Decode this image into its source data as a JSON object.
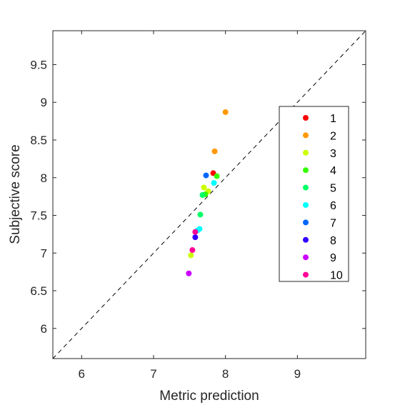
{
  "chart_data": {
    "type": "scatter",
    "xlabel": "Metric prediction",
    "ylabel": "Subjective score",
    "xlim": [
      5.6,
      9.95
    ],
    "ylim": [
      5.6,
      9.95
    ],
    "xticks": [
      6,
      7,
      8,
      9
    ],
    "yticks": [
      6,
      6.5,
      7,
      7.5,
      8,
      8.5,
      9,
      9.5
    ],
    "xtick_labels": [
      "6",
      "7",
      "8",
      "9"
    ],
    "ytick_labels": [
      "6",
      "6.5",
      "7",
      "7.5",
      "8",
      "8.5",
      "9",
      "9.5"
    ],
    "grid": false,
    "reference_line": "y = x (dashed)",
    "legend_position": "right",
    "series": [
      {
        "name": "1",
        "color": "#ff0000",
        "points": [
          [
            7.83,
            8.06
          ]
        ]
      },
      {
        "name": "2",
        "color": "#ff9900",
        "points": [
          [
            8.0,
            8.87
          ],
          [
            7.85,
            8.35
          ]
        ]
      },
      {
        "name": "3",
        "color": "#ccff00",
        "points": [
          [
            7.7,
            7.87
          ],
          [
            7.76,
            7.82
          ],
          [
            7.52,
            6.97
          ]
        ]
      },
      {
        "name": "4",
        "color": "#33ff00",
        "points": [
          [
            7.88,
            8.02
          ],
          [
            7.72,
            7.78
          ]
        ]
      },
      {
        "name": "5",
        "color": "#00ff66",
        "points": [
          [
            7.65,
            7.51
          ],
          [
            7.68,
            7.77
          ]
        ]
      },
      {
        "name": "6",
        "color": "#00ffff",
        "points": [
          [
            7.84,
            7.93
          ],
          [
            7.64,
            7.32
          ],
          [
            7.61,
            7.3
          ]
        ]
      },
      {
        "name": "7",
        "color": "#0066ff",
        "points": [
          [
            7.73,
            8.03
          ]
        ]
      },
      {
        "name": "8",
        "color": "#3300ff",
        "points": [
          [
            7.58,
            7.21
          ]
        ]
      },
      {
        "name": "9",
        "color": "#cc00ff",
        "points": [
          [
            7.49,
            6.73
          ]
        ]
      },
      {
        "name": "10",
        "color": "#ff0099",
        "points": [
          [
            7.54,
            7.04
          ],
          [
            7.58,
            7.28
          ]
        ]
      }
    ]
  }
}
